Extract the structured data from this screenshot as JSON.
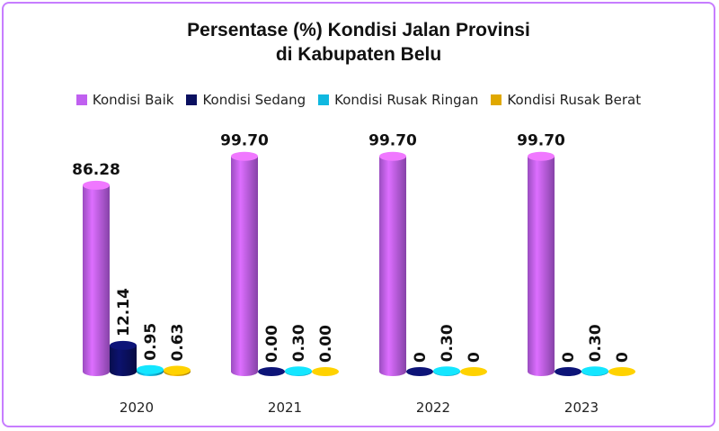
{
  "chart_data": {
    "type": "bar",
    "title_lines": [
      "Persentase (%) Kondisi Jalan Provinsi",
      "di Kabupaten Belu"
    ],
    "categories": [
      "2020",
      "2021",
      "2022",
      "2023"
    ],
    "series": [
      {
        "name": "Kondisi Baik",
        "color": "#c060f0",
        "values": [
          86.28,
          99.7,
          99.7,
          99.7
        ],
        "labels": [
          "86.28",
          "99.70",
          "99.70",
          "99.70"
        ]
      },
      {
        "name": "Kondisi Sedang",
        "color": "#0a1060",
        "values": [
          12.14,
          0.0,
          0,
          0
        ],
        "labels": [
          "12.14",
          "0.00",
          "0",
          "0"
        ]
      },
      {
        "name": "Kondisi Rusak Ringan",
        "color": "#10b8e0",
        "values": [
          0.95,
          0.3,
          0.3,
          0.3
        ],
        "labels": [
          "0.95",
          "0.30",
          "0.30",
          "0.30"
        ]
      },
      {
        "name": "Kondisi Rusak Berat",
        "color": "#e0a800",
        "values": [
          0.63,
          0.0,
          0,
          0
        ],
        "labels": [
          "0.63",
          "0.00",
          "0",
          "0"
        ]
      }
    ],
    "ylim": [
      0,
      100
    ],
    "grid": false,
    "legend_position": "top",
    "style": "3d-cylinder"
  }
}
